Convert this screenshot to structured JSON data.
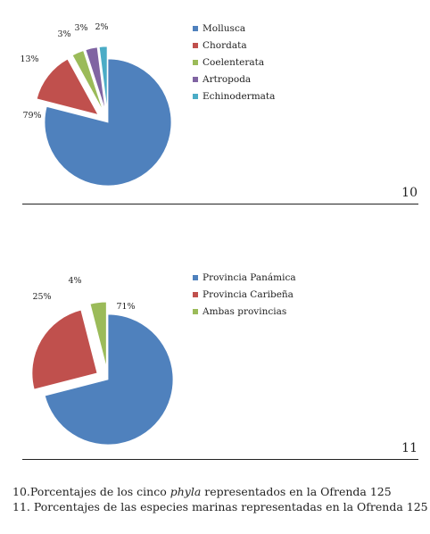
{
  "chart_data": [
    {
      "type": "pie",
      "figure_number": "10",
      "categories": [
        "Mollusca",
        "Chordata",
        "Coelenterata",
        "Artropoda",
        "Echinodermata"
      ],
      "values": [
        79,
        13,
        3,
        3,
        2
      ],
      "labels": [
        "79%",
        "13%",
        "3%",
        "3%",
        "2%"
      ],
      "colors": [
        "#4F81BD",
        "#C0504D",
        "#9BBB59",
        "#8064A2",
        "#4BACC6"
      ],
      "exploded": true,
      "legend_position": "right"
    },
    {
      "type": "pie",
      "figure_number": "11",
      "categories": [
        "Provincia Panámica",
        "Provincia Caribeña",
        "Ambas provincias"
      ],
      "values": [
        71,
        25,
        4
      ],
      "labels": [
        "71%",
        "25%",
        "4%"
      ],
      "colors": [
        "#4F81BD",
        "#C0504D",
        "#9BBB59"
      ],
      "exploded": true,
      "legend_position": "right"
    }
  ],
  "captions": {
    "fig10": {
      "number": "10.",
      "before": "Porcentajes de los cinco ",
      "italic": "phyla",
      "after": " representados en la Ofrenda 125"
    },
    "fig11": {
      "number": "11.",
      "text": "Porcentajes de las especies marinas representadas en la Ofrenda 125"
    }
  }
}
